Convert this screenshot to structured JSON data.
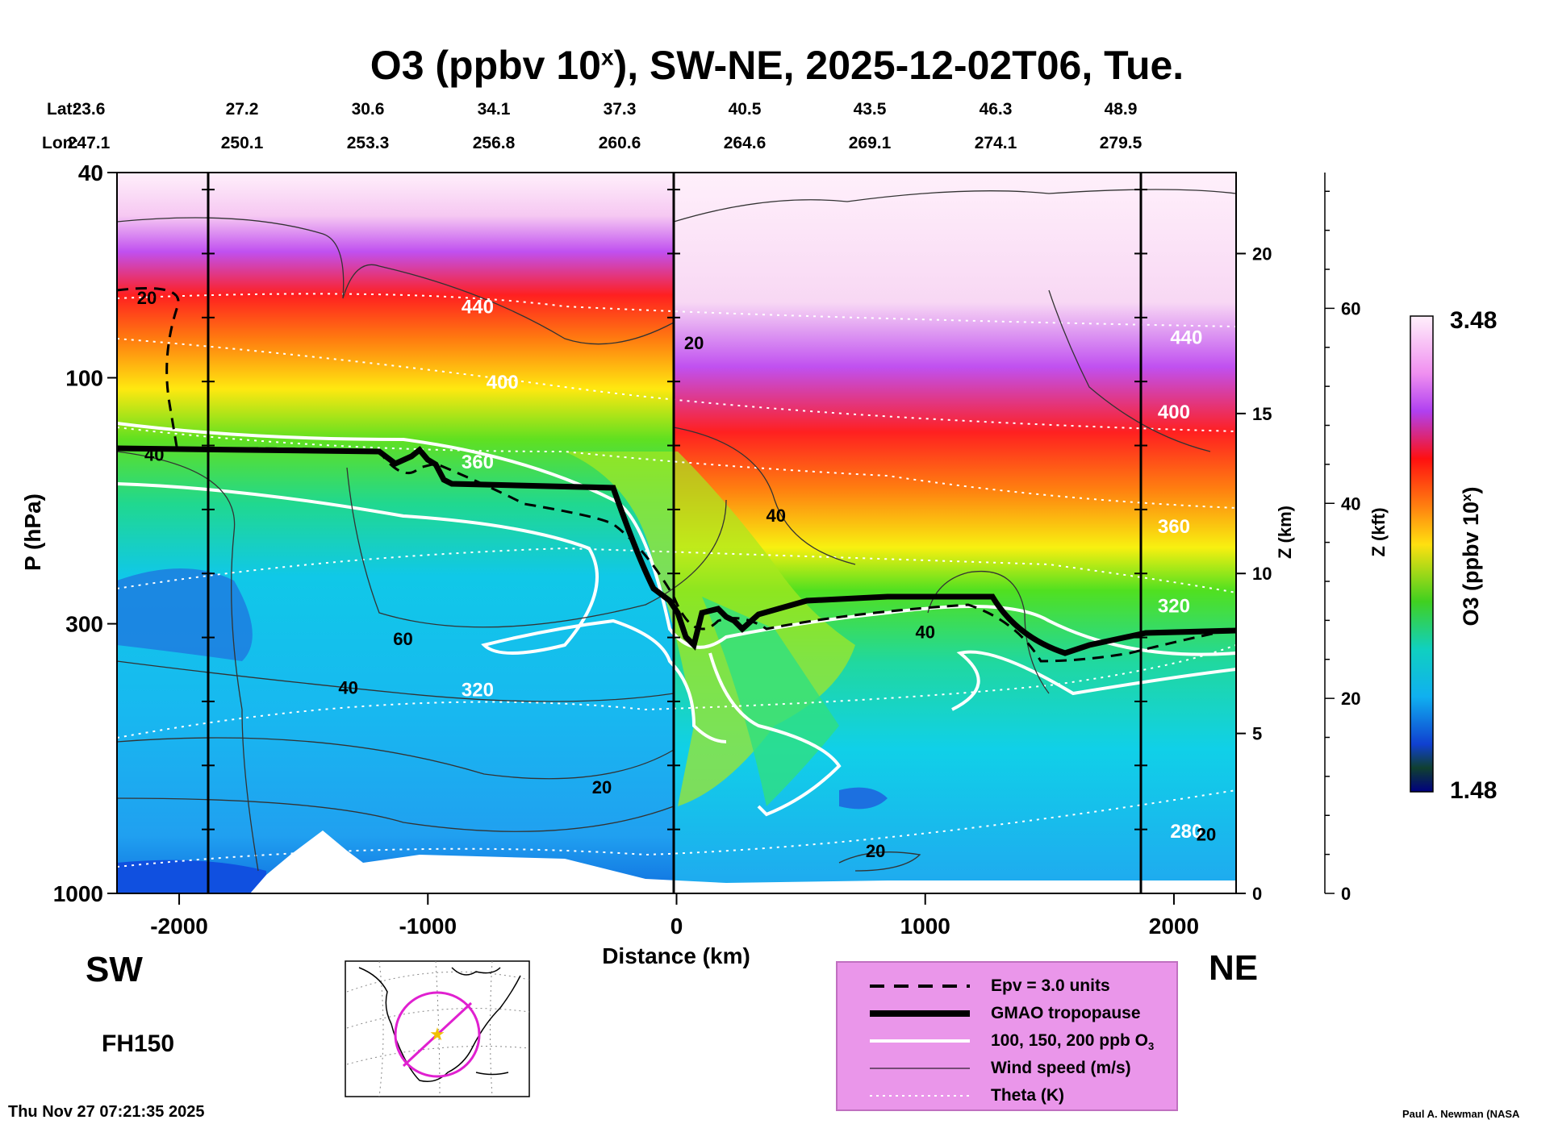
{
  "title": {
    "prefix": "O3 (ppbv 10",
    "sup": "x",
    "suffix": "), SW-NE, 2025-12-02T06, Tue."
  },
  "lat": {
    "label": "Lat:",
    "values": [
      "23.6",
      "27.2",
      "30.6",
      "34.1",
      "37.3",
      "40.5",
      "43.5",
      "46.3",
      "48.9"
    ]
  },
  "lon": {
    "label": "Lon:",
    "values": [
      "247.1",
      "250.1",
      "253.3",
      "256.8",
      "260.6",
      "264.6",
      "269.1",
      "274.1",
      "279.5"
    ]
  },
  "direction": {
    "left": "SW",
    "right": "NE"
  },
  "forecast_hour": "FH150",
  "timestamp": "Thu Nov 27 07:21:35 2025",
  "credit": "Paul A. Newman (NASA",
  "colorbar": {
    "max_label": "3.48",
    "min_label": "1.48",
    "title": "O3 (ppbv 10",
    "title_sup": "x",
    "title_end": ")"
  },
  "legend": [
    {
      "label": "Epv = 3.0 units",
      "style": "dashed"
    },
    {
      "label": "GMAO tropopause",
      "style": "thick"
    },
    {
      "label": "100, 150, 200 ppb O",
      "sub": "3",
      "style": "white"
    },
    {
      "label": "Wind speed (m/s)",
      "style": "thin"
    },
    {
      "label": "Theta (K)",
      "style": "dotted"
    }
  ],
  "chart_data": {
    "type": "heatmap",
    "title": "O3 (ppbv 10^x), SW-NE, 2025-12-02T06, Tue.",
    "xlabel": "Distance (km)",
    "ylabel": "P (hPa)",
    "y2label": "Z (km)",
    "y3label": "Z (kft)",
    "xlim": [
      -2250,
      2250
    ],
    "ylim": [
      1000,
      40
    ],
    "xticks": [
      -2000,
      -1000,
      0,
      1000,
      2000
    ],
    "xtick_labels": [
      "-2000",
      "-1000",
      "0",
      "1000",
      "2000"
    ],
    "yticks": [
      40,
      100,
      300,
      1000
    ],
    "ytick_labels": [
      "40",
      "100",
      "300",
      "1000"
    ],
    "z_km_ticks": [
      0,
      5,
      10,
      15,
      20
    ],
    "z_km_labels": [
      "0",
      "5",
      "10",
      "15",
      "20"
    ],
    "z_kft_ticks": [
      0,
      20,
      40,
      60
    ],
    "z_kft_labels": [
      "0",
      "20",
      "40",
      "60"
    ],
    "colorbar_range": [
      1.48,
      3.48
    ],
    "vertical_markers_km": [
      -1870,
      0,
      1870
    ],
    "tropopause": {
      "x": [
        -2250,
        -1500,
        -1200,
        -1000,
        -800,
        -500,
        -250,
        -100,
        0,
        80,
        200,
        400,
        600,
        1000,
        1300,
        1450,
        1600,
        1800,
        2000,
        2250
      ],
      "p": [
        150,
        150,
        155,
        148,
        170,
        170,
        172,
        250,
        285,
        330,
        300,
        290,
        280,
        280,
        282,
        310,
        335,
        320,
        320,
        318
      ]
    },
    "theta_labels": [
      {
        "x": -800,
        "p": 75,
        "text": "440"
      },
      {
        "x": -700,
        "p": 105,
        "text": "400"
      },
      {
        "x": -800,
        "p": 150,
        "text": "360"
      },
      {
        "x": -800,
        "p": 415,
        "text": "320"
      },
      {
        "x": 2000,
        "p": 120,
        "text": "400"
      },
      {
        "x": 2000,
        "p": 200,
        "text": "360"
      },
      {
        "x": 2000,
        "p": 285,
        "text": "320"
      },
      {
        "x": 2050,
        "p": 86,
        "text": "440"
      },
      {
        "x": 2050,
        "p": 780,
        "text": "280"
      }
    ],
    "wind_labels": [
      {
        "x": -2130,
        "p": 72,
        "text": "20"
      },
      {
        "x": -2100,
        "p": 145,
        "text": "40"
      },
      {
        "x": 70,
        "p": 88,
        "text": "20"
      },
      {
        "x": 400,
        "p": 190,
        "text": "40"
      },
      {
        "x": -1100,
        "p": 330,
        "text": "60"
      },
      {
        "x": -1320,
        "p": 410,
        "text": "40"
      },
      {
        "x": -300,
        "p": 640,
        "text": "20"
      },
      {
        "x": 1000,
        "p": 320,
        "text": "40"
      },
      {
        "x": 800,
        "p": 850,
        "text": "20"
      },
      {
        "x": 2130,
        "p": 790,
        "text": "20"
      }
    ]
  }
}
